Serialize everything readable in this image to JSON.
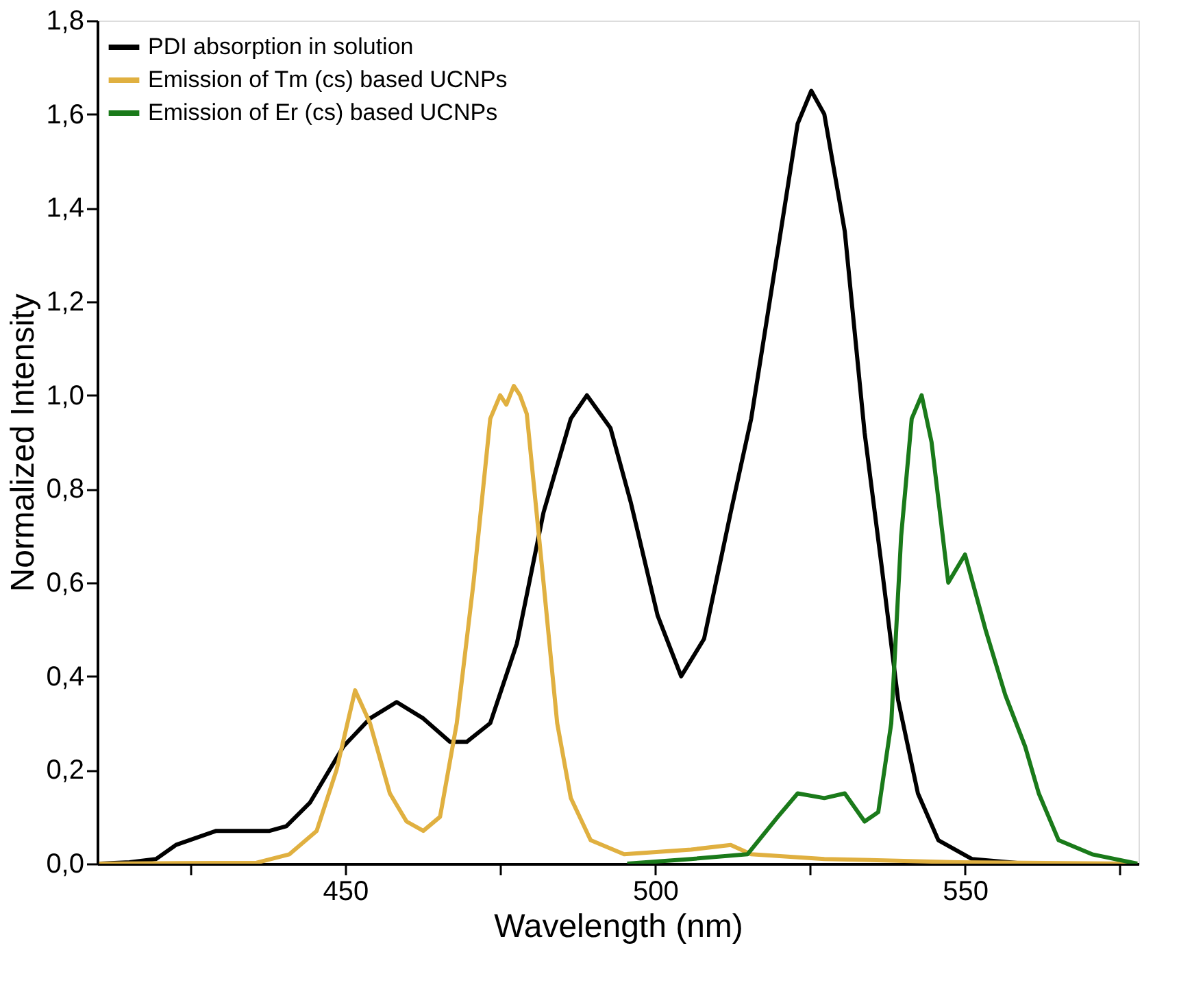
{
  "chart_data": {
    "type": "line",
    "xlabel": "Wavelength (nm)",
    "ylabel": "Normalized Intensity",
    "xlim": [
      410,
      578
    ],
    "ylim": [
      0,
      1.8
    ],
    "xticks": [
      {
        "value": 425,
        "label": null
      },
      450,
      {
        "value": 475,
        "label": null
      },
      500,
      {
        "value": 525,
        "label": null
      },
      550,
      {
        "value": 575,
        "label": null
      }
    ],
    "yticks": [
      {
        "value": 0,
        "label": "0,0"
      },
      {
        "value": 0.2,
        "label": "0,2"
      },
      {
        "value": 0.4,
        "label": "0,4"
      },
      {
        "value": 0.6,
        "label": "0,6"
      },
      {
        "value": 0.8,
        "label": "0,8"
      },
      {
        "value": 1.0,
        "label": "1,0"
      },
      {
        "value": 1.2,
        "label": "1,2"
      },
      {
        "value": 1.4,
        "label": "1,4"
      },
      {
        "value": 1.6,
        "label": "1,6"
      },
      {
        "value": 1.8,
        "label": "1,8"
      }
    ],
    "grid": false,
    "legend": "top left",
    "marker": "none",
    "line_style": "solid",
    "series": [
      {
        "name": "PDI absorption in solution",
        "color": "#000000",
        "x": [
          410.3,
          415.2,
          419.5,
          422.7,
          429.2,
          437.8,
          440.5,
          444.3,
          449.7,
          454,
          458.3,
          462.6,
          466.9,
          469.6,
          473.4,
          477.7,
          482,
          486.4,
          489,
          492.8,
          496.1,
          500.4,
          504.2,
          507.9,
          512.2,
          515.5,
          519.8,
          523,
          525.2,
          527.3,
          530.6,
          533.8,
          536.5,
          539.2,
          542.4,
          545.7,
          551.1,
          559.7
        ],
        "values": [
          0,
          0.003,
          0.01,
          0.04,
          0.07,
          0.07,
          0.08,
          0.13,
          0.25,
          0.31,
          0.345,
          0.31,
          0.26,
          0.26,
          0.3,
          0.47,
          0.75,
          0.95,
          1.0,
          0.93,
          0.77,
          0.53,
          0.4,
          0.48,
          0.75,
          0.95,
          1.31,
          1.58,
          1.65,
          1.6,
          1.35,
          0.92,
          0.64,
          0.35,
          0.15,
          0.05,
          0.01,
          0.0
        ]
      },
      {
        "name": "Emission of Tm (cs) based UCNPs",
        "color": "#e0b040",
        "x": [
          410.3,
          435.7,
          441,
          445.4,
          448.6,
          451.6,
          454,
          457.2,
          459.9,
          462.6,
          465.3,
          468,
          470.7,
          473.4,
          475,
          476,
          477.2,
          478.2,
          479.3,
          482,
          484.2,
          486.4,
          489.6,
          495,
          505.8,
          512.2,
          515.5,
          527.3,
          548.9,
          577.8
        ],
        "values": [
          0,
          0.002,
          0.02,
          0.07,
          0.2,
          0.37,
          0.3,
          0.15,
          0.09,
          0.07,
          0.1,
          0.3,
          0.6,
          0.95,
          1.0,
          0.98,
          1.02,
          1.0,
          0.96,
          0.6,
          0.3,
          0.14,
          0.05,
          0.02,
          0.03,
          0.04,
          0.02,
          0.01,
          0.003,
          0
        ]
      },
      {
        "name": "Emission of Er (cs) based UCNPs",
        "color": "#1a7a1a",
        "x": [
          495.5,
          505.8,
          514.9,
          519.8,
          523,
          527.3,
          530.6,
          533.8,
          536,
          538.1,
          539.7,
          541.4,
          543,
          544.6,
          547.3,
          550,
          553.3,
          556.5,
          559.7,
          561.9,
          565.1,
          570.5,
          577.8
        ],
        "values": [
          0.0,
          0.01,
          0.02,
          0.1,
          0.15,
          0.14,
          0.15,
          0.09,
          0.11,
          0.3,
          0.7,
          0.95,
          1.0,
          0.9,
          0.6,
          0.66,
          0.5,
          0.36,
          0.25,
          0.15,
          0.05,
          0.02,
          0.0
        ]
      }
    ]
  }
}
